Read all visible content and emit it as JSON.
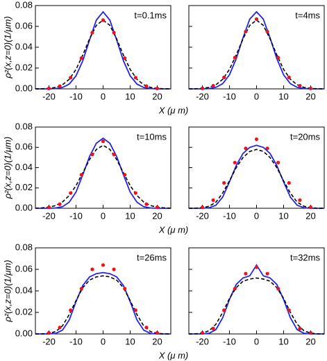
{
  "chart_data": [
    {
      "type": "line",
      "annotation": "t=0.1ms",
      "ylabel": "ρ²(x,z=0)(1/μm)",
      "xlabel": "X (μ m)",
      "xlim": [
        -25,
        25
      ],
      "xticks": [
        -20,
        -10,
        0,
        10,
        20
      ],
      "ylim": [
        0,
        0.08
      ],
      "ytick_labels": true,
      "yticks": [
        {
          "value": 0,
          "label": "0.00"
        },
        {
          "value": 0.02,
          "label": "0.02"
        },
        {
          "value": 0.04,
          "label": "0.04"
        },
        {
          "value": 0.06,
          "label": "0.06"
        },
        {
          "value": 0.08,
          "label": "0.08"
        }
      ],
      "x": [
        -25,
        -22.5,
        -20,
        -17.5,
        -15,
        -12.5,
        -10,
        -7.5,
        -5,
        -2.5,
        0,
        2.5,
        5,
        7.5,
        10,
        12.5,
        15,
        17.5,
        20,
        22.5,
        25
      ],
      "series": [
        {
          "color": "#2323e6",
          "style": "solid",
          "values": [
            0,
            0,
            0,
            0.0003,
            0.0013,
            0.0046,
            0.0125,
            0.027,
            0.047,
            0.066,
            0.074,
            0.066,
            0.047,
            0.027,
            0.0125,
            0.0046,
            0.0013,
            0.0003,
            0,
            0,
            0
          ]
        },
        {
          "color": "#000000",
          "style": "dashed",
          "values": [
            0,
            0.0001,
            0.0004,
            0.0014,
            0.0039,
            0.0092,
            0.0187,
            0.0325,
            0.048,
            0.061,
            0.066,
            0.061,
            0.048,
            0.0325,
            0.0187,
            0.0092,
            0.0039,
            0.0014,
            0.0004,
            0.0001,
            0
          ]
        },
        {
          "color": "#e8141e",
          "style": "dots",
          "x": [
            -20,
            -16,
            -12,
            -8,
            -4,
            0,
            4,
            8,
            12,
            16,
            20
          ],
          "values": [
            0.0004,
            0.0026,
            0.0108,
            0.0295,
            0.054,
            0.066,
            0.054,
            0.0295,
            0.0108,
            0.0026,
            0.0004
          ]
        }
      ]
    },
    {
      "type": "line",
      "annotation": "t=4ms",
      "xlim": [
        -25,
        25
      ],
      "xticks": [
        -20,
        -10,
        0,
        10,
        20
      ],
      "ylim": [
        0,
        0.08
      ],
      "ytick_labels": false,
      "yticks": [
        0,
        0.02,
        0.04,
        0.06,
        0.08
      ],
      "x": [
        -25,
        -22.5,
        -20,
        -17.5,
        -15,
        -12.5,
        -10,
        -7.5,
        -5,
        -2.5,
        0,
        2.5,
        5,
        7.5,
        10,
        12.5,
        15,
        17.5,
        20,
        22.5,
        25
      ],
      "series": [
        {
          "color": "#2323e6",
          "style": "solid",
          "values": [
            0,
            0,
            0,
            0.0003,
            0.0015,
            0.005,
            0.0135,
            0.029,
            0.049,
            0.067,
            0.074,
            0.067,
            0.049,
            0.029,
            0.0135,
            0.005,
            0.0015,
            0.0003,
            0,
            0,
            0
          ]
        },
        {
          "color": "#000000",
          "style": "dashed",
          "values": [
            0,
            0.0001,
            0.0004,
            0.0014,
            0.0039,
            0.0092,
            0.0187,
            0.0325,
            0.048,
            0.061,
            0.066,
            0.061,
            0.048,
            0.0325,
            0.0187,
            0.0092,
            0.0039,
            0.0014,
            0.0004,
            0.0001,
            0
          ]
        },
        {
          "color": "#e8141e",
          "style": "dots",
          "x": [
            -20,
            -16,
            -12,
            -8,
            -4,
            0,
            4,
            8,
            12,
            16,
            20
          ],
          "values": [
            0.0005,
            0.003,
            0.011,
            0.03,
            0.055,
            0.067,
            0.055,
            0.03,
            0.011,
            0.003,
            0.0005
          ]
        }
      ]
    },
    {
      "type": "line",
      "annotation": "t=10ms",
      "ylabel": "ρ²(x,z=0)(1/μm)",
      "xlabel": "X (μ m)",
      "xlim": [
        -25,
        25
      ],
      "xticks": [
        -20,
        -10,
        0,
        10,
        20
      ],
      "ylim": [
        0,
        0.08
      ],
      "ytick_labels": true,
      "yticks": [
        {
          "value": 0,
          "label": "0.00"
        },
        {
          "value": 0.02,
          "label": "0.02"
        },
        {
          "value": 0.04,
          "label": "0.04"
        },
        {
          "value": 0.06,
          "label": "0.06"
        },
        {
          "value": 0.08,
          "label": "0.08"
        }
      ],
      "x": [
        -25,
        -22.5,
        -20,
        -17.5,
        -15,
        -12.5,
        -10,
        -7.5,
        -5,
        -2.5,
        0,
        2.5,
        5,
        7.5,
        10,
        12.5,
        15,
        17.5,
        20,
        22.5,
        25
      ],
      "series": [
        {
          "color": "#2323e6",
          "style": "solid",
          "values": [
            0,
            0,
            0,
            0.0003,
            0.0015,
            0.006,
            0.016,
            0.033,
            0.051,
            0.064,
            0.069,
            0.064,
            0.051,
            0.033,
            0.016,
            0.006,
            0.0015,
            0.0003,
            0,
            0,
            0
          ]
        },
        {
          "color": "#000000",
          "style": "dashed",
          "values": [
            0.0001,
            0.0004,
            0.0011,
            0.0027,
            0.0062,
            0.0126,
            0.0223,
            0.035,
            0.048,
            0.058,
            0.062,
            0.058,
            0.048,
            0.035,
            0.0223,
            0.0126,
            0.0062,
            0.0027,
            0.0011,
            0.0004,
            0.0001
          ]
        },
        {
          "color": "#e8141e",
          "style": "dots",
          "x": [
            -20,
            -16,
            -12,
            -8,
            -4,
            0,
            4,
            8,
            12,
            16,
            20
          ],
          "values": [
            0.001,
            0.004,
            0.015,
            0.033,
            0.053,
            0.066,
            0.053,
            0.033,
            0.015,
            0.004,
            0.001
          ]
        }
      ]
    },
    {
      "type": "line",
      "annotation": "t=20ms",
      "xlim": [
        -25,
        25
      ],
      "xticks": [
        -20,
        -10,
        0,
        10,
        20
      ],
      "ylim": [
        0,
        0.08
      ],
      "ytick_labels": false,
      "yticks": [
        0,
        0.02,
        0.04,
        0.06,
        0.08
      ],
      "x": [
        -25,
        -22.5,
        -20,
        -17.5,
        -15,
        -12.5,
        -10,
        -7.5,
        -5,
        -2.5,
        0,
        2.5,
        5,
        7.5,
        10,
        12.5,
        15,
        17.5,
        20,
        22.5,
        25
      ],
      "series": [
        {
          "color": "#2323e6",
          "style": "solid",
          "values": [
            0,
            0,
            0,
            0.0005,
            0.003,
            0.011,
            0.026,
            0.042,
            0.054,
            0.06,
            0.062,
            0.06,
            0.054,
            0.042,
            0.026,
            0.011,
            0.003,
            0.0005,
            0,
            0,
            0
          ]
        },
        {
          "color": "#000000",
          "style": "dashed",
          "values": [
            0,
            0.0001,
            0.0005,
            0.002,
            0.006,
            0.015,
            0.027,
            0.04,
            0.05,
            0.056,
            0.058,
            0.056,
            0.05,
            0.04,
            0.027,
            0.015,
            0.006,
            0.002,
            0.0005,
            0.0001,
            0
          ]
        },
        {
          "color": "#e8141e",
          "style": "dots",
          "x": [
            -20,
            -16,
            -12,
            -8,
            -4,
            0,
            4,
            8,
            12,
            16,
            20
          ],
          "values": [
            0.001,
            0.008,
            0.025,
            0.045,
            0.059,
            0.068,
            0.059,
            0.045,
            0.025,
            0.008,
            0.001
          ]
        }
      ]
    },
    {
      "type": "line",
      "annotation": "t=26ms",
      "ylabel": "ρ²(x,z=0)(1/μm)",
      "xlabel": "X (μ m)",
      "xlim": [
        -25,
        25
      ],
      "xticks": [
        -20,
        -10,
        0,
        10,
        20
      ],
      "ylim": [
        0,
        0.08
      ],
      "ytick_labels": true,
      "yticks": [
        {
          "value": 0,
          "label": "0.00"
        },
        {
          "value": 0.02,
          "label": "0.02"
        },
        {
          "value": 0.04,
          "label": "0.04"
        },
        {
          "value": 0.06,
          "label": "0.06"
        },
        {
          "value": 0.08,
          "label": "0.08"
        }
      ],
      "x": [
        -25,
        -22.5,
        -20,
        -17.5,
        -15,
        -12.5,
        -10,
        -7.5,
        -5,
        -2.5,
        0,
        2.5,
        5,
        7.5,
        10,
        12.5,
        15,
        17.5,
        20,
        22.5,
        25
      ],
      "series": [
        {
          "color": "#2323e6",
          "style": "solid",
          "values": [
            0,
            0,
            0,
            0.0005,
            0.0035,
            0.013,
            0.03,
            0.045,
            0.053,
            0.056,
            0.057,
            0.056,
            0.053,
            0.045,
            0.03,
            0.013,
            0.0035,
            0.0005,
            0,
            0,
            0
          ]
        },
        {
          "color": "#000000",
          "style": "dashed",
          "values": [
            0,
            0.0001,
            0.0005,
            0.0022,
            0.0075,
            0.018,
            0.031,
            0.043,
            0.05,
            0.053,
            0.054,
            0.053,
            0.05,
            0.043,
            0.031,
            0.018,
            0.0075,
            0.0022,
            0.0005,
            0.0001,
            0
          ]
        },
        {
          "color": "#e8141e",
          "style": "dots",
          "x": [
            -20,
            -16,
            -12,
            -8,
            -4,
            0,
            4,
            8,
            12,
            16,
            20
          ],
          "values": [
            0.001,
            0.006,
            0.022,
            0.042,
            0.06,
            0.064,
            0.06,
            0.042,
            0.022,
            0.006,
            0.001
          ]
        }
      ]
    },
    {
      "type": "line",
      "annotation": "t=32ms",
      "xlim": [
        -25,
        25
      ],
      "xticks": [
        -20,
        -10,
        0,
        10,
        20
      ],
      "ylim": [
        0,
        0.08
      ],
      "ytick_labels": false,
      "yticks": [
        0,
        0.02,
        0.04,
        0.06,
        0.08
      ],
      "x": [
        -25,
        -22.5,
        -20,
        -17.5,
        -15,
        -12.5,
        -10,
        -7.5,
        -5,
        -2.5,
        0,
        2.5,
        5,
        7.5,
        10,
        12.5,
        15,
        17.5,
        20,
        22.5,
        25
      ],
      "series": [
        {
          "color": "#2323e6",
          "style": "solid",
          "values": [
            0,
            0,
            0,
            0.0006,
            0.004,
            0.015,
            0.032,
            0.046,
            0.052,
            0.054,
            0.064,
            0.054,
            0.052,
            0.046,
            0.032,
            0.015,
            0.004,
            0.0006,
            0,
            0,
            0
          ]
        },
        {
          "color": "#000000",
          "style": "dashed",
          "values": [
            0,
            0.0001,
            0.0007,
            0.003,
            0.009,
            0.02,
            0.033,
            0.043,
            0.049,
            0.051,
            0.052,
            0.051,
            0.049,
            0.043,
            0.033,
            0.02,
            0.009,
            0.003,
            0.0007,
            0.0001,
            0
          ]
        },
        {
          "color": "#e8141e",
          "style": "dots",
          "x": [
            -20,
            -16,
            -12,
            -8,
            -4,
            0,
            4,
            8,
            12,
            16,
            20
          ],
          "values": [
            0.001,
            0.005,
            0.022,
            0.042,
            0.056,
            0.062,
            0.056,
            0.042,
            0.022,
            0.005,
            0.001
          ]
        }
      ]
    }
  ]
}
